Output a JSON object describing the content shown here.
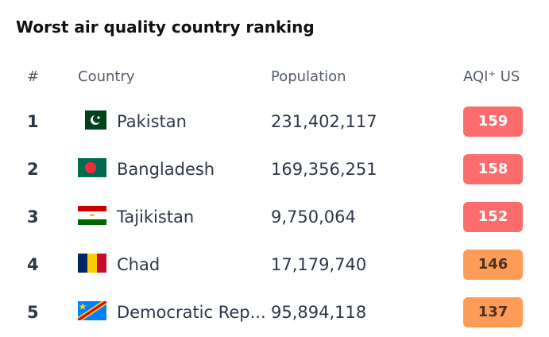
{
  "header": {
    "title": "Worst air quality country ranking"
  },
  "table": {
    "columns": [
      "#",
      "Country",
      "Population",
      "AQI⁺ US"
    ],
    "rows": [
      {
        "rank": "1",
        "country": "Pakistan",
        "population": "231,402,117",
        "aqi": "159",
        "color": "#fd6c6c",
        "text_color": "#ffffff"
      },
      {
        "rank": "2",
        "country": "Bangladesh",
        "population": "169,356,251",
        "aqi": "158",
        "color": "#fd6c6c",
        "text_color": "#ffffff"
      },
      {
        "rank": "3",
        "country": "Tajikistan",
        "population": "9,750,064",
        "aqi": "152",
        "color": "#fd6c6c",
        "text_color": "#ffffff"
      },
      {
        "rank": "4",
        "country": "Chad",
        "population": "17,179,740",
        "aqi": "146",
        "color": "#fe9b57",
        "text_color": "#4a3320"
      },
      {
        "rank": "5",
        "country": "Democratic Rep...",
        "population": "95,894,118",
        "aqi": "137",
        "color": "#fe9b57",
        "text_color": "#4a3320"
      }
    ]
  }
}
